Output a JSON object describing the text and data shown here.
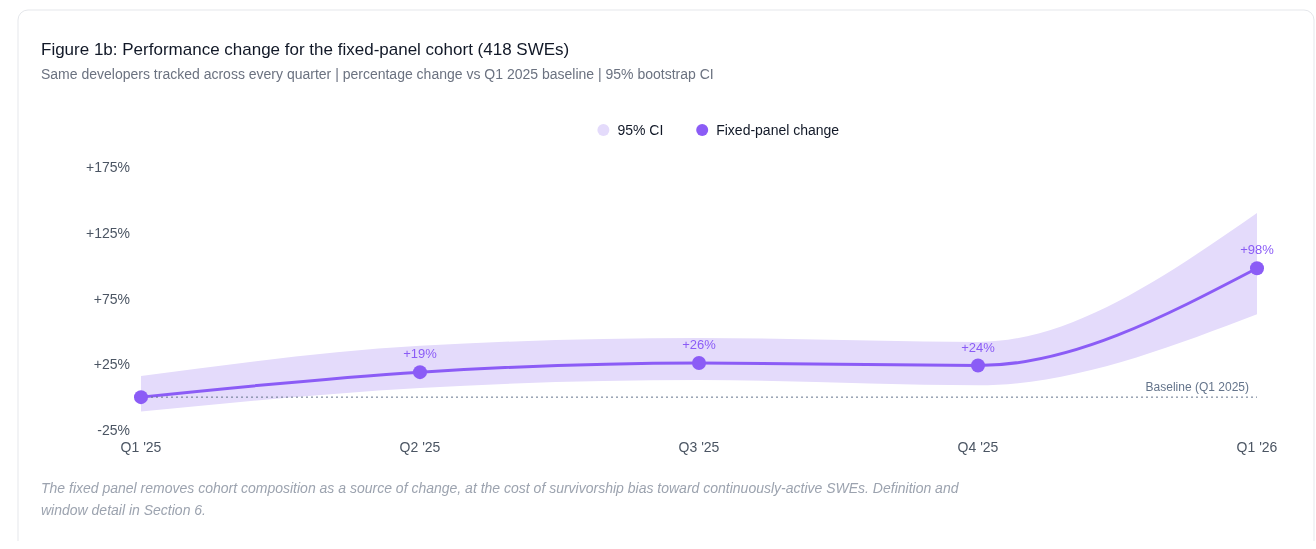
{
  "chart_data": {
    "type": "line",
    "title": "Figure 1b: Performance change for the fixed-panel cohort (418 SWEs)",
    "subtitle": "Same developers tracked across every quarter | percentage change vs Q1 2025 baseline | 95% bootstrap CI",
    "categories": [
      "Q1 '25",
      "Q2 '25",
      "Q3 '25",
      "Q4 '25",
      "Q1 '26"
    ],
    "series": [
      {
        "name": "95% CI",
        "type": "area",
        "color": "#e4dbfb",
        "values": [
          null,
          null,
          null,
          null,
          null
        ],
        "lower": [
          -11,
          7,
          13,
          9,
          63
        ],
        "upper": [
          16,
          39,
          45,
          42,
          140
        ]
      },
      {
        "name": "Fixed-panel change",
        "color": "#8b5cf6",
        "values": [
          0,
          19,
          26,
          24,
          98
        ],
        "value_labels": [
          null,
          "+19%",
          "+26%",
          "+24%",
          "+98%"
        ]
      }
    ],
    "ylim": [
      -25,
      175
    ],
    "yticks": [
      {
        "value": -25,
        "label": "-25%"
      },
      {
        "value": 25,
        "label": "+25%"
      },
      {
        "value": 75,
        "label": "+75%"
      },
      {
        "value": 125,
        "label": "+125%"
      },
      {
        "value": 175,
        "label": "+175%"
      }
    ],
    "ref_lines": [
      {
        "axis": "y",
        "value": 0,
        "label": "Baseline (Q1 2025)",
        "color": "#64748b",
        "line_style": "dotted"
      }
    ],
    "marker": "circle",
    "legend": "top",
    "grid": false,
    "annotations": [
      "The fixed panel removes cohort composition as a source of change, at the cost of survivorship bias toward continuously-active SWEs. Definition and window detail in Section 6."
    ]
  }
}
